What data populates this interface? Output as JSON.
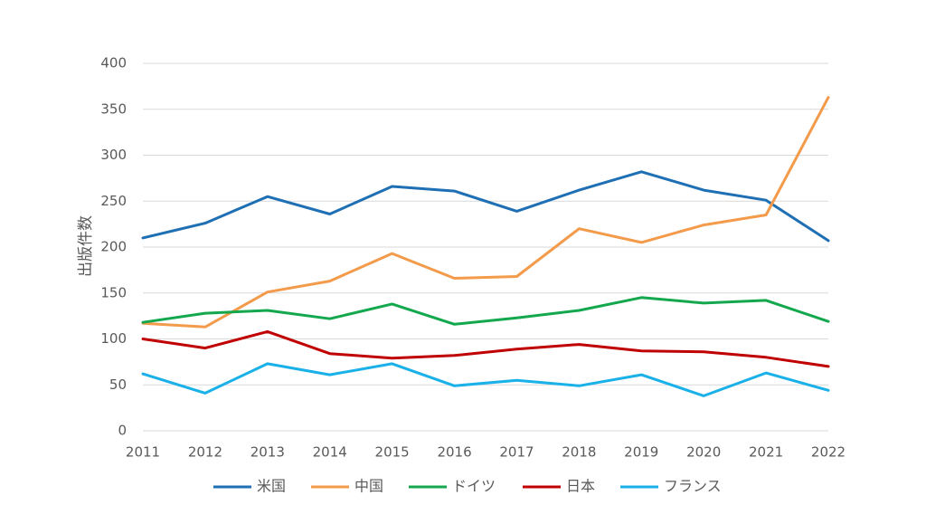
{
  "chart_data": {
    "type": "line",
    "title": "",
    "xlabel": "",
    "ylabel": "出版件数",
    "ylim": [
      0,
      400
    ],
    "yticks": [
      0,
      50,
      100,
      150,
      200,
      250,
      300,
      350,
      400
    ],
    "grid": true,
    "legend_position": "bottom",
    "categories": [
      "2011",
      "2012",
      "2013",
      "2014",
      "2015",
      "2016",
      "2017",
      "2018",
      "2019",
      "2020",
      "2021",
      "2022"
    ],
    "series": [
      {
        "name": "米国",
        "color": "#1f6fb4",
        "values": [
          210,
          226,
          255,
          236,
          266,
          261,
          239,
          262,
          282,
          262,
          251,
          207
        ]
      },
      {
        "name": "中国",
        "color": "#f39b4b",
        "values": [
          117,
          113,
          151,
          163,
          193,
          166,
          168,
          220,
          205,
          224,
          235,
          363
        ]
      },
      {
        "name": "ドイツ",
        "color": "#14a84e",
        "values": [
          118,
          128,
          131,
          122,
          138,
          116,
          123,
          131,
          145,
          139,
          142,
          119
        ]
      },
      {
        "name": "日本",
        "color": "#c00000",
        "values": [
          100,
          90,
          108,
          84,
          79,
          82,
          89,
          94,
          87,
          86,
          80,
          70
        ]
      },
      {
        "name": "フランス",
        "color": "#1ab0e8",
        "values": [
          62,
          41,
          73,
          61,
          73,
          49,
          55,
          49,
          61,
          38,
          63,
          44
        ]
      }
    ]
  }
}
